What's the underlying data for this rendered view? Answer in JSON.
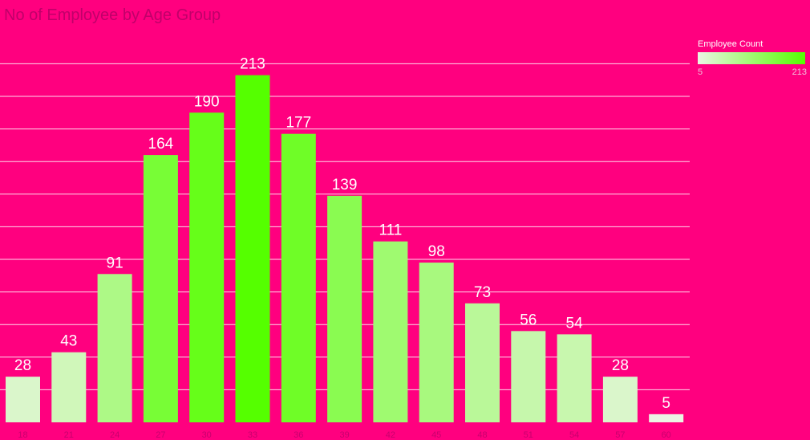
{
  "title": "No of Employee by Age Group",
  "legend": {
    "title": "Employee Count",
    "min_label": "5",
    "max_label": "213",
    "min_color": "#ebf5e4",
    "max_color": "#55ff00"
  },
  "colors": {
    "background": "#ff007f",
    "gridline": "#ffffff",
    "bar_label": "#ffffff",
    "tick_label": "#c8006e"
  },
  "chart_data": {
    "type": "bar",
    "title": "No of Employee by Age Group",
    "categories": [
      "18",
      "21",
      "24",
      "27",
      "30",
      "33",
      "36",
      "39",
      "42",
      "45",
      "48",
      "51",
      "54",
      "57",
      "60"
    ],
    "values": [
      28,
      43,
      91,
      164,
      190,
      213,
      177,
      139,
      111,
      98,
      73,
      56,
      54,
      28,
      5
    ],
    "ylim": [
      0,
      213
    ],
    "grid": true,
    "legend_placement": "top-right"
  }
}
